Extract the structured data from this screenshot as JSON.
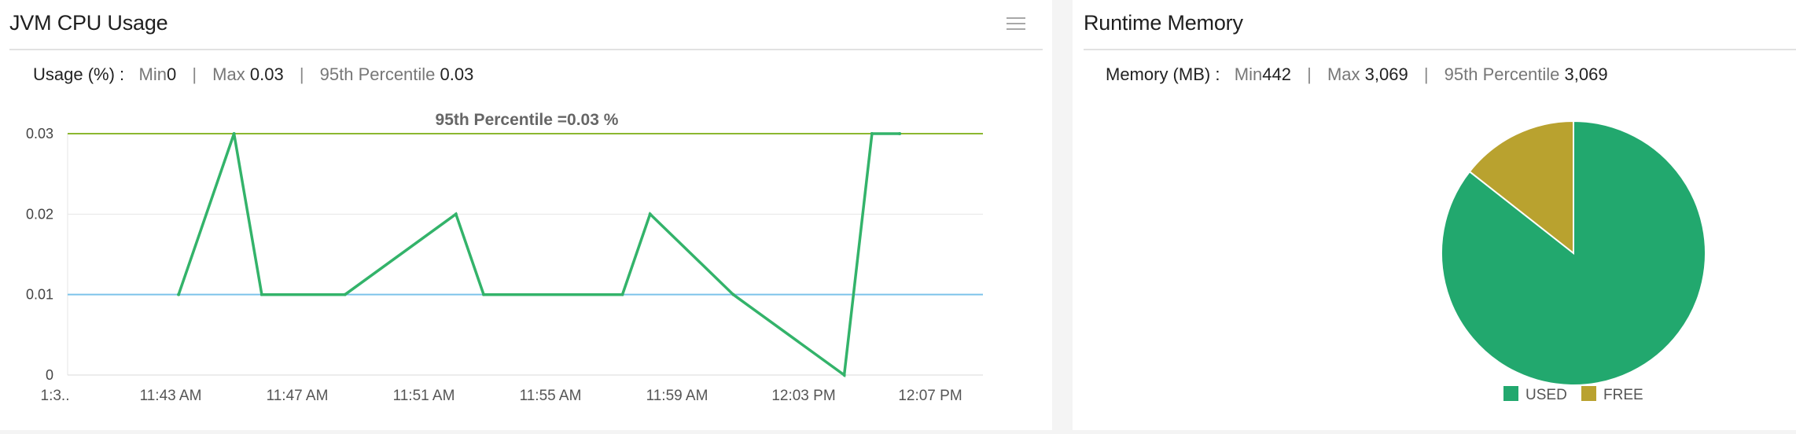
{
  "cpu": {
    "title": "JVM CPU Usage",
    "stats": {
      "label": "Usage (%) :",
      "min_label": "Min",
      "min_value": "0",
      "sep": "|",
      "max_label": "Max",
      "max_value": "0.03",
      "p95_label": "95th Percentile",
      "p95_value": "0.03"
    }
  },
  "memory": {
    "title": "Runtime Memory",
    "stats": {
      "label": "Memory (MB) :",
      "min_label": "Min",
      "min_value": "442",
      "sep": "|",
      "max_label": "Max",
      "max_value": "3,069",
      "p95_label": "95th Percentile",
      "p95_value": "3,069"
    }
  },
  "chart_data": [
    {
      "type": "line",
      "title": "",
      "annotation": "95th Percentile =0.03 %",
      "x_tick_labels": [
        "1:3..",
        "11:43 AM",
        "11:47 AM",
        "11:51 AM",
        "11:55 AM",
        "11:59 AM",
        "12:03 PM",
        "12:07 PM"
      ],
      "x_minutes": [
        0,
        2,
        3,
        6,
        10,
        11,
        16,
        17,
        20,
        24,
        25,
        26
      ],
      "x_labels_series": [
        "11:40 AM",
        "11:42 AM",
        "11:43 AM",
        "11:46 AM",
        "11:50 AM",
        "11:51 AM",
        "11:56 AM",
        "11:57 AM",
        "12:00 PM",
        "12:04 PM",
        "12:05 PM",
        "12:06 PM"
      ],
      "series": [
        {
          "values": [
            0.01,
            0.03,
            0.01,
            0.01,
            0.02,
            0.01,
            0.01,
            0.02,
            0.01,
            0,
            0.03,
            0.03
          ],
          "color": "#33b36a"
        }
      ],
      "reference_lines": [
        {
          "value": 0.03,
          "color": "#8cb830"
        },
        {
          "value": 0.01,
          "color": "#7cc3ea"
        }
      ],
      "y_ticks": [
        "0",
        "0.01",
        "0.02",
        "0.03"
      ],
      "ylim": [
        0,
        0.03
      ],
      "grid": true
    },
    {
      "type": "pie",
      "labels": [
        "USED",
        "FREE"
      ],
      "values": [
        2627,
        442
      ],
      "colors": [
        "#22a86e",
        "#b9a22f"
      ],
      "legend": "bottom"
    }
  ]
}
